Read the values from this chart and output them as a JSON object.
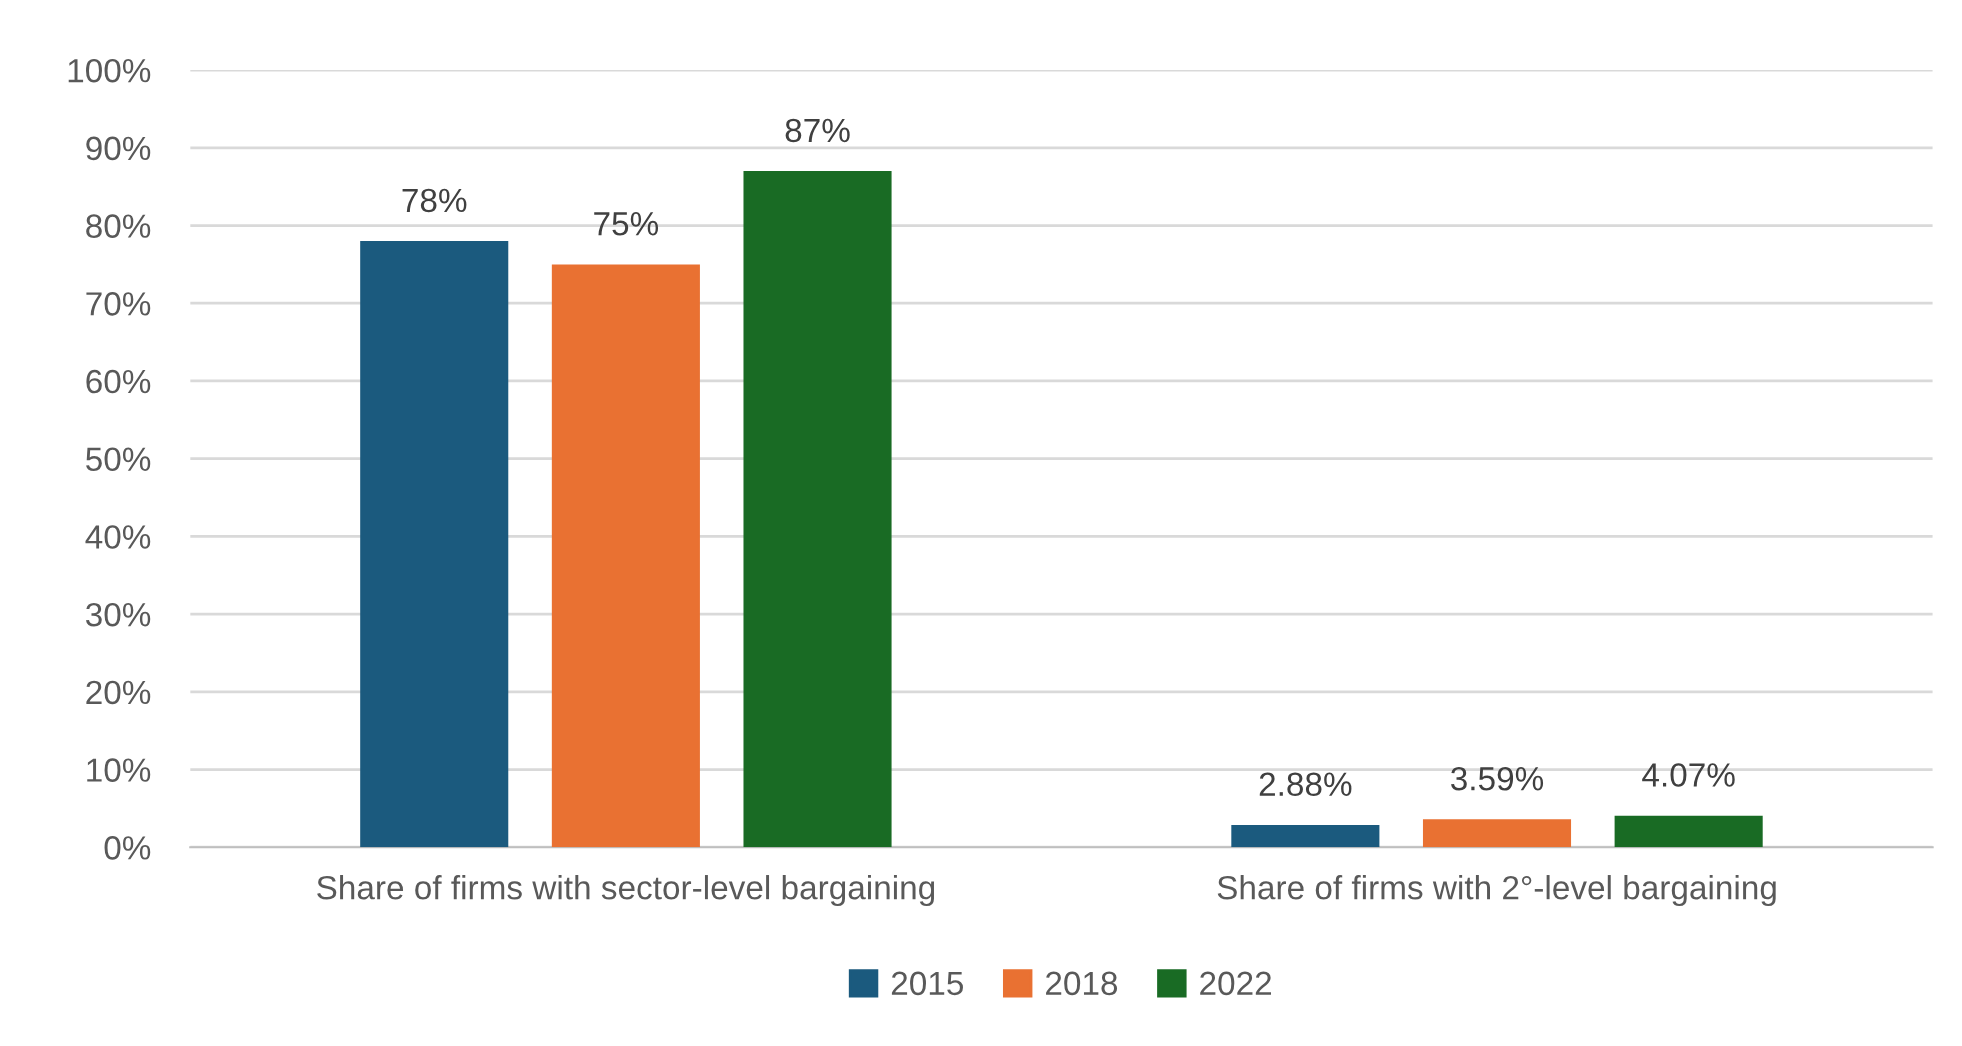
{
  "chart_data": {
    "type": "bar",
    "categories": [
      "Share of firms with sector-level bargaining",
      "Share of firms with 2°-level bargaining"
    ],
    "series": [
      {
        "name": "2015",
        "color": "#1b5a7e",
        "values": [
          78,
          2.88
        ],
        "value_labels": [
          "78%",
          "2.88%"
        ]
      },
      {
        "name": "2018",
        "color": "#e97132",
        "values": [
          75,
          3.59
        ],
        "value_labels": [
          "75%",
          "3.59%"
        ]
      },
      {
        "name": "2022",
        "color": "#196b24",
        "values": [
          87,
          4.07
        ],
        "value_labels": [
          "87%",
          "4.07%"
        ]
      }
    ],
    "ylim": [
      0,
      100
    ],
    "yticks": [
      {
        "value": 0,
        "label": "0%"
      },
      {
        "value": 10,
        "label": "10%"
      },
      {
        "value": 20,
        "label": "20%"
      },
      {
        "value": 30,
        "label": "30%"
      },
      {
        "value": 40,
        "label": "40%"
      },
      {
        "value": 50,
        "label": "50%"
      },
      {
        "value": 60,
        "label": "60%"
      },
      {
        "value": 70,
        "label": "70%"
      },
      {
        "value": 80,
        "label": "80%"
      },
      {
        "value": 90,
        "label": "90%"
      },
      {
        "value": 100,
        "label": "100%"
      }
    ],
    "grid": "y",
    "legend": "bottom"
  }
}
